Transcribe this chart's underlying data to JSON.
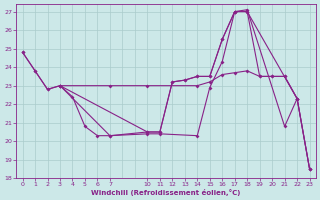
{
  "background_color": "#cce8e8",
  "line_color": "#882288",
  "grid_color": "#aacccc",
  "xlabel": "Windchill (Refroidissement éolien,°C)",
  "xlim": [
    -0.5,
    23.5
  ],
  "ylim": [
    18,
    27.4
  ],
  "yticks": [
    18,
    19,
    20,
    21,
    22,
    23,
    24,
    25,
    26,
    27
  ],
  "xtick_positions": [
    0,
    1,
    2,
    3,
    4,
    5,
    6,
    7,
    10,
    11,
    12,
    13,
    14,
    15,
    16,
    17,
    18,
    19,
    20,
    21,
    22,
    23
  ],
  "xtick_labels": [
    "0",
    "1",
    "2",
    "3",
    "4",
    "5",
    "6",
    "7",
    "10",
    "11",
    "12",
    "13",
    "14",
    "15",
    "16",
    "17",
    "18",
    "19",
    "20",
    "21",
    "22",
    "23"
  ],
  "lines": [
    {
      "x": [
        0,
        1,
        2,
        3,
        4,
        5,
        6,
        7,
        10,
        11,
        14,
        15,
        16,
        17,
        18,
        21,
        22,
        23
      ],
      "y": [
        24.8,
        23.8,
        22.8,
        23.0,
        22.4,
        20.8,
        20.3,
        20.3,
        20.4,
        20.4,
        20.3,
        22.9,
        24.3,
        27.0,
        27.1,
        20.8,
        22.3,
        18.5
      ]
    },
    {
      "x": [
        0,
        1,
        2,
        3,
        7,
        10,
        11,
        12,
        13,
        14,
        15,
        16,
        17,
        18,
        22,
        23
      ],
      "y": [
        24.8,
        23.8,
        22.8,
        23.0,
        20.3,
        20.5,
        20.5,
        23.2,
        23.3,
        23.5,
        23.5,
        25.5,
        27.0,
        27.0,
        22.3,
        18.5
      ]
    },
    {
      "x": [
        3,
        10,
        11,
        12,
        13,
        14,
        15,
        16,
        17,
        18,
        19,
        20,
        21,
        22
      ],
      "y": [
        23.0,
        20.5,
        20.5,
        23.2,
        23.3,
        23.5,
        23.5,
        25.5,
        27.0,
        27.0,
        23.5,
        23.5,
        23.5,
        22.3
      ]
    },
    {
      "x": [
        3,
        7,
        10,
        14,
        15,
        16,
        17,
        18,
        19,
        20,
        21,
        22,
        23
      ],
      "y": [
        23.0,
        23.0,
        23.0,
        23.0,
        23.2,
        23.6,
        23.7,
        23.8,
        23.5,
        23.5,
        23.5,
        22.3,
        18.5
      ]
    }
  ]
}
